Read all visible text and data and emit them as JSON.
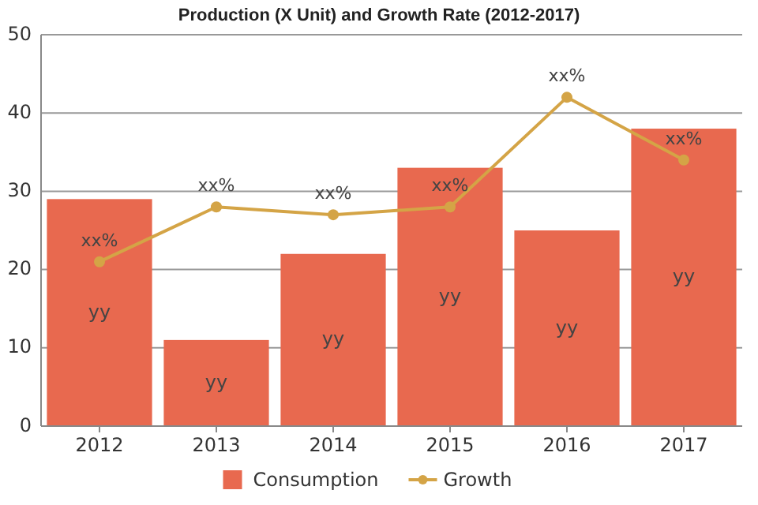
{
  "chart_data": {
    "type": "bar",
    "title": "Production (X Unit) and Growth Rate (2012-2017)",
    "categories": [
      "2012",
      "2013",
      "2014",
      "2015",
      "2016",
      "2017"
    ],
    "series": [
      {
        "name": "Consumption",
        "color": "#e8694f",
        "values": [
          29,
          11,
          22,
          33,
          25,
          38
        ],
        "value_labels": [
          "yy",
          "yy",
          "yy",
          "yy",
          "yy",
          "yy"
        ]
      },
      {
        "name": "Growth",
        "type": "line",
        "color": "#d4a446",
        "values": [
          21,
          28,
          27,
          28,
          42,
          34
        ],
        "value_labels": [
          "xx%",
          "xx%",
          "xx%",
          "xx%",
          "xx%",
          "xx%"
        ]
      }
    ],
    "ylim": [
      0,
      50
    ],
    "yticks": [
      0,
      10,
      20,
      30,
      40,
      50
    ],
    "grid": "y",
    "legend": "bottom",
    "marker": "circle"
  }
}
